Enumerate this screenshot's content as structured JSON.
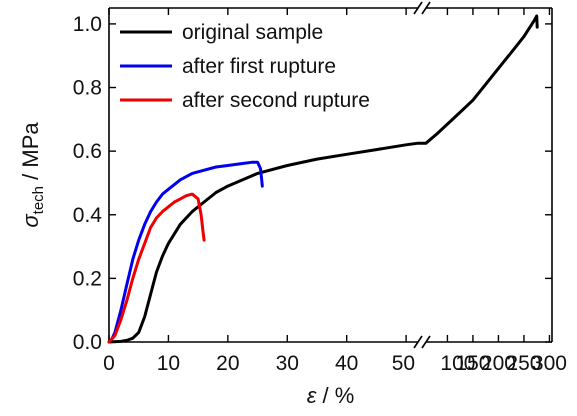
{
  "chart_data": {
    "type": "line",
    "x_axis": {
      "label_symbol": "ε",
      "label_unit": " / %",
      "broken": true,
      "segments": [
        {
          "range": [
            0,
            52
          ],
          "ticks": [
            0,
            10,
            20,
            30,
            40,
            50
          ]
        },
        {
          "range": [
            58,
            305
          ],
          "ticks": [
            100,
            150,
            200,
            250,
            300
          ]
        }
      ]
    },
    "y_axis": {
      "label_symbol": "σ",
      "label_subscript": "tech",
      "label_unit": " / MPa",
      "ylim": [
        0,
        1.05
      ],
      "ticks": [
        "0.0",
        "0.2",
        "0.4",
        "0.6",
        "0.8",
        "1.0"
      ]
    },
    "legend_position": "top-left",
    "series": [
      {
        "name": "original sample",
        "color": "#000000",
        "x": [
          0,
          2,
          3,
          4,
          5,
          6,
          7,
          8,
          9,
          10,
          11,
          12,
          14,
          16,
          18,
          20,
          25,
          30,
          35,
          40,
          45,
          50,
          52,
          58,
          80,
          100,
          120,
          150,
          180,
          200,
          230,
          250,
          270,
          275,
          276
        ],
        "y": [
          0,
          0.002,
          0.005,
          0.012,
          0.03,
          0.08,
          0.15,
          0.22,
          0.27,
          0.31,
          0.34,
          0.37,
          0.41,
          0.44,
          0.47,
          0.49,
          0.53,
          0.555,
          0.575,
          0.59,
          0.605,
          0.62,
          0.625,
          0.625,
          0.655,
          0.685,
          0.715,
          0.76,
          0.82,
          0.86,
          0.92,
          0.96,
          1.01,
          1.025,
          0.99
        ]
      },
      {
        "name": "after first rupture",
        "color": "#0000ee",
        "x": [
          0,
          0.5,
          1,
          2,
          3,
          4,
          5,
          6,
          7,
          8,
          9,
          10,
          12,
          14,
          16,
          18,
          20,
          22,
          24,
          25,
          25.5,
          25.7,
          25.8
        ],
        "y": [
          0,
          0.01,
          0.03,
          0.1,
          0.18,
          0.26,
          0.32,
          0.37,
          0.41,
          0.44,
          0.465,
          0.48,
          0.51,
          0.53,
          0.54,
          0.55,
          0.555,
          0.56,
          0.565,
          0.565,
          0.545,
          0.51,
          0.49
        ]
      },
      {
        "name": "after second rupture",
        "color": "#ee0000",
        "x": [
          0,
          0.5,
          1,
          2,
          3,
          4,
          5,
          6,
          7,
          8,
          9,
          10,
          11,
          12,
          13,
          14,
          15,
          15.5,
          15.8,
          16
        ],
        "y": [
          0,
          0.01,
          0.02,
          0.07,
          0.13,
          0.2,
          0.26,
          0.31,
          0.36,
          0.39,
          0.41,
          0.425,
          0.44,
          0.45,
          0.46,
          0.465,
          0.45,
          0.4,
          0.35,
          0.32
        ]
      }
    ]
  }
}
